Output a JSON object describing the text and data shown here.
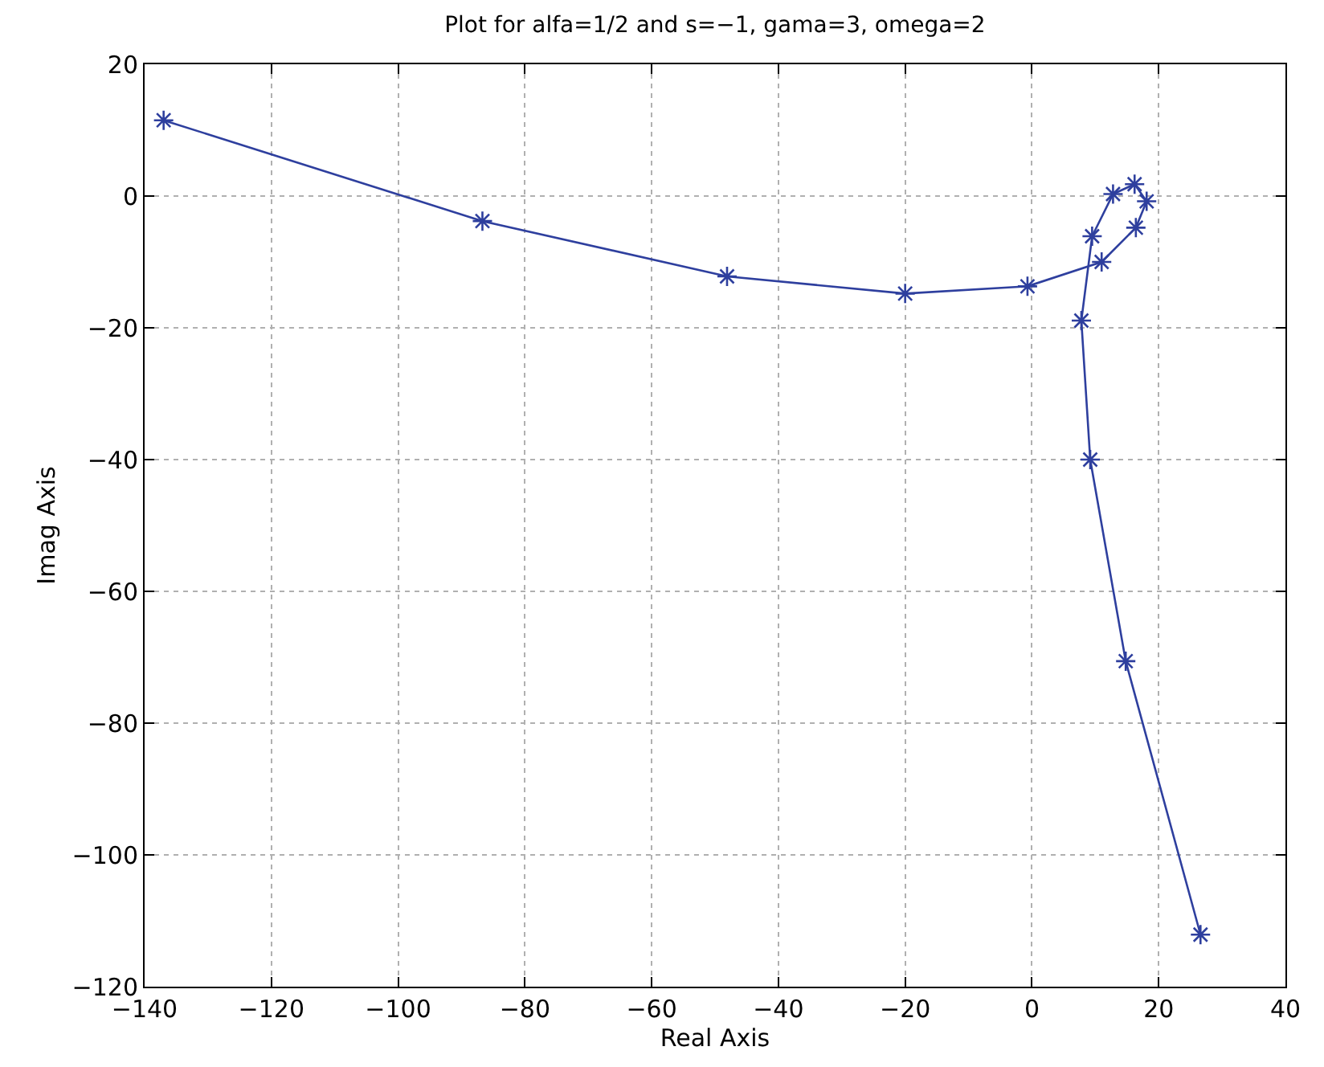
{
  "chart_data": {
    "type": "line",
    "title": "Plot for alfa=1/2 and s=−1, gama=3, omega=2",
    "xlabel": "Real Axis",
    "ylabel": "Imag Axis",
    "x": [
      -137,
      -86.7,
      -48.1,
      -20,
      -0.7,
      11,
      16.4,
      18.1,
      16.2,
      12.8,
      9.5,
      7.8,
      9.2,
      14.8,
      26.6
    ],
    "series": [
      {
        "color": "#2e3f9e",
        "values": [
          11.5,
          -3.8,
          -12.2,
          -14.8,
          -13.7,
          -10,
          -4.8,
          -0.8,
          1.8,
          0.3,
          -6.1,
          -18.9,
          -40,
          -70.6,
          -112.1
        ]
      }
    ],
    "xlim": [
      -140,
      40
    ],
    "xticks": [
      -140,
      -120,
      -100,
      -80,
      -60,
      -40,
      -20,
      0,
      20,
      40
    ],
    "ylim": [
      -120,
      20
    ],
    "yticks": [
      -120,
      -100,
      -80,
      -60,
      -40,
      -20,
      0,
      20
    ],
    "grid": true,
    "marker": "cross",
    "line_style": "solid"
  }
}
